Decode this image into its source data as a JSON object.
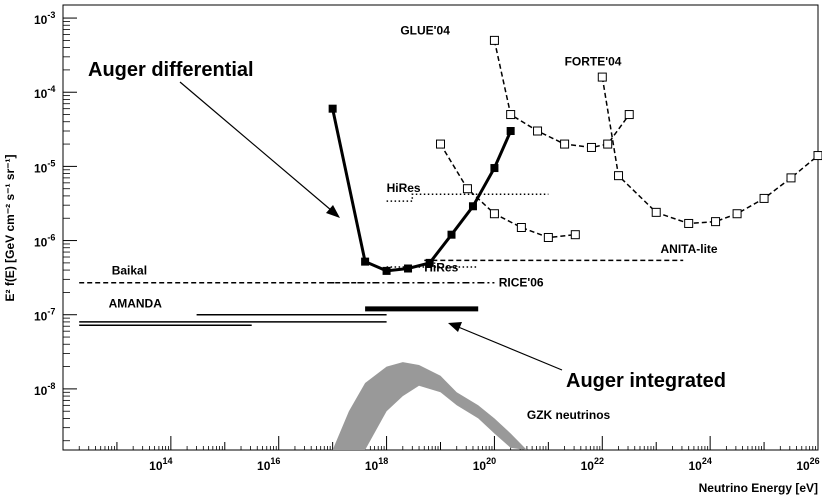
{
  "chart_data": {
    "type": "line",
    "xlabel": "Neutrino Energy [eV]",
    "ylabel": "E² f(E) [GeV cm⁻² s⁻¹ sr⁻¹]",
    "xscale": "log",
    "yscale": "log",
    "xlim": [
      1000000000000.0,
      1e+26
    ],
    "ylim": [
      1.5e-09,
      0.0015
    ],
    "x_ticks": [
      {
        "value": 100000000000000.0,
        "label": "10",
        "exp": "14"
      },
      {
        "value": 1e+16,
        "label": "10",
        "exp": "16"
      },
      {
        "value": 1e+18,
        "label": "10",
        "exp": "18"
      },
      {
        "value": 1e+20,
        "label": "10",
        "exp": "20"
      },
      {
        "value": 1e+22,
        "label": "10",
        "exp": "22"
      },
      {
        "value": 1e+24,
        "label": "10",
        "exp": "24"
      },
      {
        "value": 1e+26,
        "label": "10",
        "exp": "26"
      }
    ],
    "y_ticks": [
      {
        "value": 1e-08,
        "label": "10",
        "exp": "-8"
      },
      {
        "value": 1e-07,
        "label": "10",
        "exp": "-7"
      },
      {
        "value": 1e-06,
        "label": "10",
        "exp": "-6"
      },
      {
        "value": 1e-05,
        "label": "10",
        "exp": "-5"
      },
      {
        "value": 0.0001,
        "label": "10",
        "exp": "-4"
      },
      {
        "value": 0.001,
        "label": "10",
        "exp": "-3"
      }
    ],
    "series": [
      {
        "name": "Auger differential",
        "style": "thick-solid",
        "marker": "filled-square",
        "x": [
          1e+17,
          4e+17,
          1e+18,
          2.5e+18,
          6.3e+18,
          1.6e+19,
          4e+19,
          1e+20,
          2e+20
        ],
        "y": [
          6e-05,
          5.2e-07,
          3.9e-07,
          4.2e-07,
          5e-07,
          1.2e-06,
          2.9e-06,
          9.5e-06,
          3e-05
        ]
      },
      {
        "name": "GLUE'04",
        "style": "dashed",
        "marker": "open-square",
        "x": [
          1e+20,
          2e+20,
          6.3e+20,
          2e+21,
          6.3e+21,
          1.26e+22,
          3.16e+22
        ],
        "y": [
          0.0005,
          5e-05,
          3e-05,
          2e-05,
          1.8e-05,
          2e-05,
          5e-05
        ]
      },
      {
        "name": "FORTE'04",
        "style": "dashed",
        "marker": "open-square",
        "x": [
          1e+22,
          2e+22,
          1e+23,
          4e+23,
          1.26e+24,
          3.16e+24,
          1e+25,
          3.16e+25,
          1e+26
        ],
        "y": [
          0.00016,
          7.5e-06,
          2.4e-06,
          1.7e-06,
          1.8e-06,
          2.3e-06,
          3.7e-06,
          7e-06,
          1.4e-05
        ]
      },
      {
        "name": "ANITA-lite",
        "style": "dashed",
        "marker": "open-square",
        "x": [
          1e+19,
          3.16e+19,
          1e+20,
          3.16e+20,
          1e+21,
          3.16e+21
        ],
        "y": [
          2e-05,
          5e-06,
          2.3e-06,
          1.5e-06,
          1.1e-06,
          1.2e-06
        ]
      },
      {
        "name": "HiRes",
        "style": "dotted",
        "x": [
          1e+18,
          3e+18,
          3e+18,
          1e+20,
          1e+21
        ],
        "y": [
          3.4e-06,
          3.4e-06,
          4.2e-06,
          4.2e-06,
          4.2e-06
        ]
      },
      {
        "name": "HiRes",
        "style": "dotted",
        "x": [
          1e+18,
          5e+19
        ],
        "y": [
          4.4e-07,
          4.4e-07
        ]
      },
      {
        "name": "ANITA-lite",
        "style": "dashed",
        "x": [
          5e+18,
          3.16e+23
        ],
        "y": [
          5.4e-07,
          5.4e-07
        ]
      },
      {
        "name": "Baikal",
        "style": "dashed",
        "x": [
          2000000000000.0,
          5e+17
        ],
        "y": [
          2.7e-07,
          2.7e-07
        ]
      },
      {
        "name": "RICE'06",
        "style": "dashdot",
        "x": [
          8e+16,
          1e+20
        ],
        "y": [
          2.7e-07,
          2.7e-07
        ]
      },
      {
        "name": "AMANDA",
        "style": "solid",
        "x": [
          2000000000000.0,
          1e+18
        ],
        "y": [
          8e-08,
          8e-08
        ]
      },
      {
        "name": "AMANDA",
        "style": "solid",
        "x": [
          300000000000000.0,
          1e+18
        ],
        "y": [
          1e-07,
          1e-07
        ]
      },
      {
        "name": "AMANDA",
        "style": "solid",
        "x": [
          2000000000000.0,
          3160000000000000.0
        ],
        "y": [
          7.2e-08,
          7.2e-08
        ]
      },
      {
        "name": "Auger integrated",
        "style": "very-thick-solid",
        "x": [
          4e+17,
          5e+19
        ],
        "y": [
          1.2e-07,
          1.2e-07
        ]
      }
    ],
    "gzk_band": {
      "name": "GZK neutrinos",
      "x": [
        1e+17,
        2e+17,
        4e+17,
        1e+18,
        2e+18,
        4e+18,
        1e+19,
        2e+19,
        5e+19,
        1e+20,
        2e+20,
        4e+20
      ],
      "upper": [
        1.5e-09,
        5e-09,
        1.2e-08,
        2e-08,
        2.3e-08,
        2.1e-08,
        1.5e-08,
        9e-09,
        6e-09,
        4e-09,
        2.5e-09,
        1.5e-09
      ],
      "lower": [
        1.5e-09,
        1.5e-09,
        1.5e-09,
        5e-09,
        8e-09,
        1.1e-08,
        9e-09,
        6e-09,
        4e-09,
        2.5e-09,
        1.6e-09,
        1.5e-09
      ]
    },
    "annotations": [
      {
        "id": "glue",
        "text": "GLUE'04",
        "x": 1.8e+18,
        "y": 0.0006
      },
      {
        "id": "forte",
        "text": "FORTE'04",
        "x": 2e+21,
        "y": 0.00023
      },
      {
        "id": "hires1",
        "text": "HiRes",
        "x": 1e+18,
        "y": 4.5e-06
      },
      {
        "id": "anita",
        "text": "ANITA-lite",
        "x": 1.2e+23,
        "y": 6.8e-07
      },
      {
        "id": "baikal",
        "text": "Baikal",
        "x": 8000000000000.0,
        "y": 3.5e-07
      },
      {
        "id": "hires2",
        "text": "HiRes",
        "x": 5e+18,
        "y": 3.8e-07
      },
      {
        "id": "rice",
        "text": "RICE'06",
        "x": 1.2e+20,
        "y": 2.4e-07
      },
      {
        "id": "amanda",
        "text": "AMANDA",
        "x": 7000000000000.0,
        "y": 1.25e-07
      },
      {
        "id": "gzk",
        "text": "GZK neutrinos",
        "x": 4e+20,
        "y": 3.9e-09
      }
    ],
    "big_annotations": [
      {
        "id": "auger-diff",
        "text": "Auger differential"
      },
      {
        "id": "auger-int",
        "text": "Auger integrated"
      }
    ]
  }
}
